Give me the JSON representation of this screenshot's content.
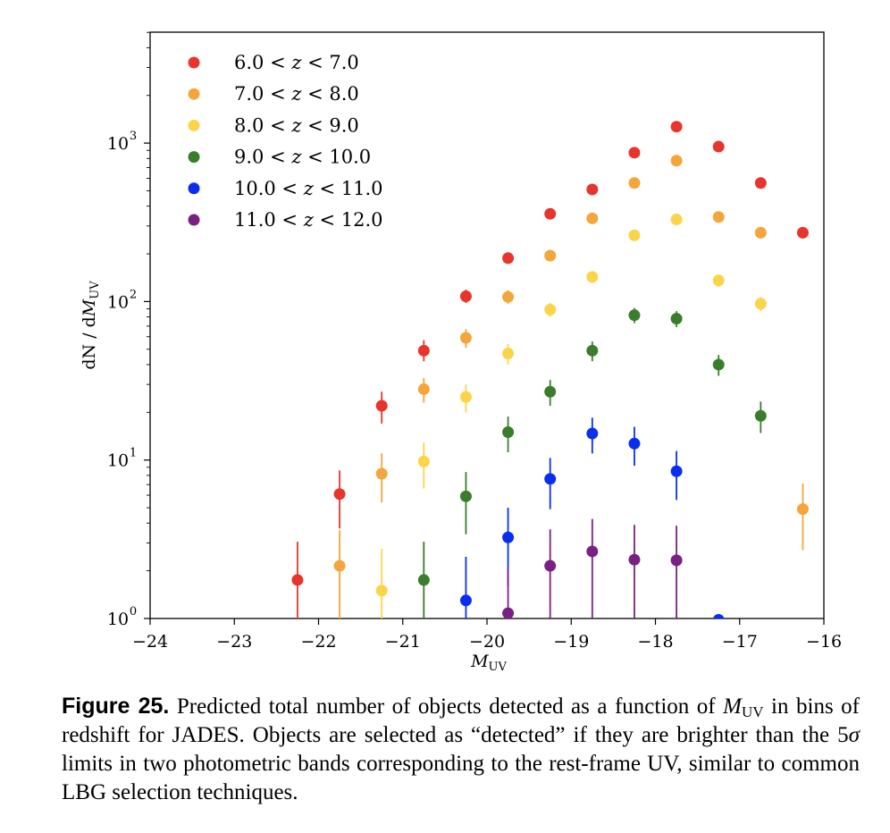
{
  "chart_data": {
    "type": "scatter",
    "xlabel": "M_UV",
    "ylabel": "dN / dM_UV",
    "xlim": [
      -24,
      -16
    ],
    "ylim_log10": [
      0,
      3.7
    ],
    "yscale": "log",
    "x_ticks": [
      -24,
      -23,
      -22,
      -21,
      -20,
      -19,
      -18,
      -17,
      -16
    ],
    "x_tick_labels": [
      "−24",
      "−23",
      "−22",
      "−21",
      "−20",
      "−19",
      "−18",
      "−17",
      "−16"
    ],
    "y_ticks": [
      1,
      10,
      100,
      1000
    ],
    "y_tick_labels": [
      "10",
      "10",
      "10",
      "10"
    ],
    "y_tick_exponents": [
      "0",
      "1",
      "2",
      "3"
    ],
    "legend_position": "upper-left",
    "grid": false,
    "series": [
      {
        "name": "6.0 < z < 7.0",
        "color": "#e8352b",
        "points": [
          {
            "x": -22.25,
            "y": 1.75,
            "ylo": 0.9,
            "yhi": 3.05
          },
          {
            "x": -21.75,
            "y": 6.1,
            "ylo": 3.7,
            "yhi": 8.6
          },
          {
            "x": -21.25,
            "y": 22,
            "ylo": 17,
            "yhi": 27
          },
          {
            "x": -20.75,
            "y": 49,
            "ylo": 42,
            "yhi": 57
          },
          {
            "x": -20.25,
            "y": 108,
            "ylo": 98,
            "yhi": 119
          },
          {
            "x": -19.75,
            "y": 188,
            "ylo": 175,
            "yhi": 201
          },
          {
            "x": -19.25,
            "y": 358,
            "ylo": 340,
            "yhi": 377
          },
          {
            "x": -18.75,
            "y": 510,
            "ylo": 488,
            "yhi": 533
          },
          {
            "x": -18.25,
            "y": 870,
            "ylo": 840,
            "yhi": 900
          },
          {
            "x": -17.75,
            "y": 1270,
            "ylo": 1235,
            "yhi": 1305
          },
          {
            "x": -17.25,
            "y": 950,
            "ylo": 920,
            "yhi": 981
          },
          {
            "x": -16.75,
            "y": 560,
            "ylo": 537,
            "yhi": 584
          },
          {
            "x": -16.25,
            "y": 272,
            "ylo": 256,
            "yhi": 289
          }
        ]
      },
      {
        "name": "7.0 < z < 8.0",
        "color": "#f4a53b",
        "points": [
          {
            "x": -21.75,
            "y": 2.15,
            "ylo": 1.0,
            "yhi": 3.6
          },
          {
            "x": -21.25,
            "y": 8.2,
            "ylo": 5.4,
            "yhi": 11
          },
          {
            "x": -20.75,
            "y": 28,
            "ylo": 23,
            "yhi": 33
          },
          {
            "x": -20.25,
            "y": 59,
            "ylo": 51,
            "yhi": 67
          },
          {
            "x": -19.75,
            "y": 107,
            "ylo": 97,
            "yhi": 118
          },
          {
            "x": -19.25,
            "y": 195,
            "ylo": 181,
            "yhi": 209
          },
          {
            "x": -18.75,
            "y": 335,
            "ylo": 317,
            "yhi": 354
          },
          {
            "x": -18.25,
            "y": 560,
            "ylo": 537,
            "yhi": 584
          },
          {
            "x": -17.75,
            "y": 775,
            "ylo": 747,
            "yhi": 803
          },
          {
            "x": -17.25,
            "y": 342,
            "ylo": 324,
            "yhi": 361
          },
          {
            "x": -16.75,
            "y": 272,
            "ylo": 256,
            "yhi": 289
          },
          {
            "x": -16.25,
            "y": 4.9,
            "ylo": 2.7,
            "yhi": 7.1
          }
        ]
      },
      {
        "name": "8.0 < z < 9.0",
        "color": "#fbd44a",
        "points": [
          {
            "x": -21.25,
            "y": 1.5,
            "ylo": 1.0,
            "yhi": 2.75
          },
          {
            "x": -20.75,
            "y": 9.8,
            "ylo": 6.6,
            "yhi": 12.9
          },
          {
            "x": -20.25,
            "y": 25,
            "ylo": 20,
            "yhi": 30
          },
          {
            "x": -19.75,
            "y": 47,
            "ylo": 40,
            "yhi": 54
          },
          {
            "x": -19.25,
            "y": 89,
            "ylo": 80,
            "yhi": 98
          },
          {
            "x": -18.75,
            "y": 143,
            "ylo": 131,
            "yhi": 155
          },
          {
            "x": -18.25,
            "y": 262,
            "ylo": 246,
            "yhi": 278
          },
          {
            "x": -17.75,
            "y": 330,
            "ylo": 312,
            "yhi": 348
          },
          {
            "x": -17.25,
            "y": 136,
            "ylo": 124,
            "yhi": 148
          },
          {
            "x": -16.75,
            "y": 97,
            "ylo": 87,
            "yhi": 107
          }
        ]
      },
      {
        "name": "9.0 < z < 10.0",
        "color": "#3a7d2c",
        "points": [
          {
            "x": -20.75,
            "y": 1.75,
            "ylo": 0.9,
            "yhi": 3.05
          },
          {
            "x": -20.25,
            "y": 5.9,
            "ylo": 3.4,
            "yhi": 8.4
          },
          {
            "x": -19.75,
            "y": 15,
            "ylo": 11.2,
            "yhi": 18.8
          },
          {
            "x": -19.25,
            "y": 27,
            "ylo": 22,
            "yhi": 32
          },
          {
            "x": -18.75,
            "y": 49,
            "ylo": 42,
            "yhi": 56
          },
          {
            "x": -18.25,
            "y": 82,
            "ylo": 73,
            "yhi": 91
          },
          {
            "x": -17.75,
            "y": 78,
            "ylo": 69,
            "yhi": 87
          },
          {
            "x": -17.25,
            "y": 40,
            "ylo": 34,
            "yhi": 46
          },
          {
            "x": -16.75,
            "y": 19,
            "ylo": 14.8,
            "yhi": 23.4
          }
        ]
      },
      {
        "name": "10.0 < z < 11.0",
        "color": "#0a2ef0",
        "points": [
          {
            "x": -20.25,
            "y": 1.3,
            "ylo": 0.6,
            "yhi": 2.45
          },
          {
            "x": -19.75,
            "y": 3.25,
            "ylo": 1.6,
            "yhi": 5.0
          },
          {
            "x": -19.25,
            "y": 7.6,
            "ylo": 4.9,
            "yhi": 10.3
          },
          {
            "x": -18.75,
            "y": 14.7,
            "ylo": 11,
            "yhi": 18.5
          },
          {
            "x": -18.25,
            "y": 12.7,
            "ylo": 9.2,
            "yhi": 16.2
          },
          {
            "x": -17.75,
            "y": 8.5,
            "ylo": 5.6,
            "yhi": 11.4
          },
          {
            "x": -17.25,
            "y": 0.98,
            "ylo": 0.5,
            "yhi": 1.0
          }
        ]
      },
      {
        "name": "11.0 < z < 12.0",
        "color": "#7a1f84",
        "points": [
          {
            "x": -19.75,
            "y": 1.08,
            "ylo": 0.5,
            "yhi": 2.1
          },
          {
            "x": -19.25,
            "y": 2.15,
            "ylo": 0.9,
            "yhi": 3.65
          },
          {
            "x": -18.75,
            "y": 2.65,
            "ylo": 1.0,
            "yhi": 4.25
          },
          {
            "x": -18.25,
            "y": 2.35,
            "ylo": 0.9,
            "yhi": 3.9
          },
          {
            "x": -17.75,
            "y": 2.33,
            "ylo": 0.9,
            "yhi": 3.85
          }
        ]
      }
    ]
  },
  "caption": {
    "label": "Figure 25.",
    "text_part1": " Predicted total number of objects detected as a function of ",
    "math_m": "M",
    "math_sub": "UV",
    "text_part2": " in bins of redshift for JADES. Objects are selected as “detected” if they are brighter than the 5",
    "math_sigma": "σ",
    "text_part3": " limits in two photometric bands corresponding to the rest-frame UV, similar to common LBG selection techniques."
  }
}
